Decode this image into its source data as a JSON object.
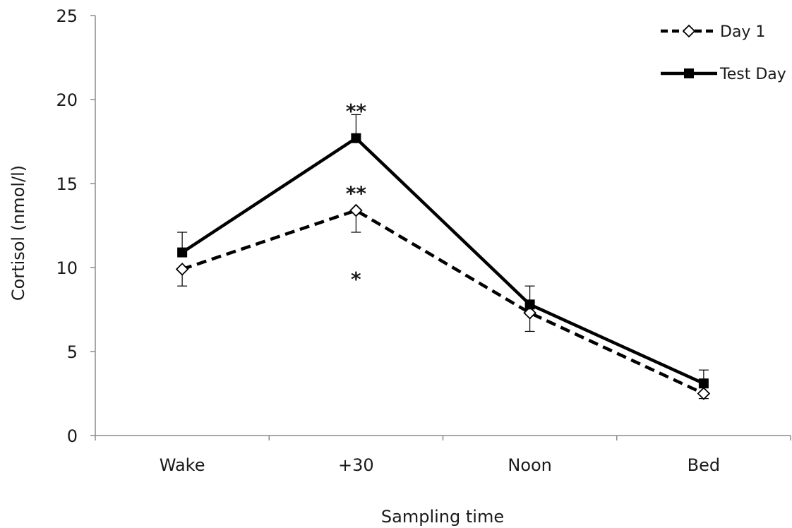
{
  "chart_data": {
    "type": "line",
    "xlabel": "Sampling time",
    "ylabel": "Cortisol (nmol/l)",
    "categories": [
      "Wake",
      "+30",
      "Noon",
      "Bed"
    ],
    "ylim": [
      0,
      25
    ],
    "yticks": [
      0,
      5,
      10,
      15,
      20,
      25
    ],
    "grid": false,
    "legend_position": "top-right",
    "series": [
      {
        "name": "Day 1",
        "values": [
          9.9,
          13.4,
          7.3,
          2.5
        ],
        "error": [
          1.0,
          1.3,
          1.1,
          0.3
        ],
        "error_direction": "down",
        "line_style": "dashed",
        "marker": "open-diamond",
        "color": "#000000"
      },
      {
        "name": "Test Day",
        "values": [
          10.9,
          17.7,
          7.8,
          3.1
        ],
        "error": [
          1.2,
          1.4,
          1.1,
          0.8
        ],
        "error_direction": "up",
        "line_style": "solid",
        "marker": "filled-square",
        "color": "#000000"
      }
    ],
    "annotations": [
      {
        "text": "**",
        "category": "+30",
        "y": 19.5
      },
      {
        "text": "**",
        "category": "+30",
        "y": 14.6
      },
      {
        "text": "*",
        "category": "+30",
        "y": 9.5
      }
    ]
  }
}
